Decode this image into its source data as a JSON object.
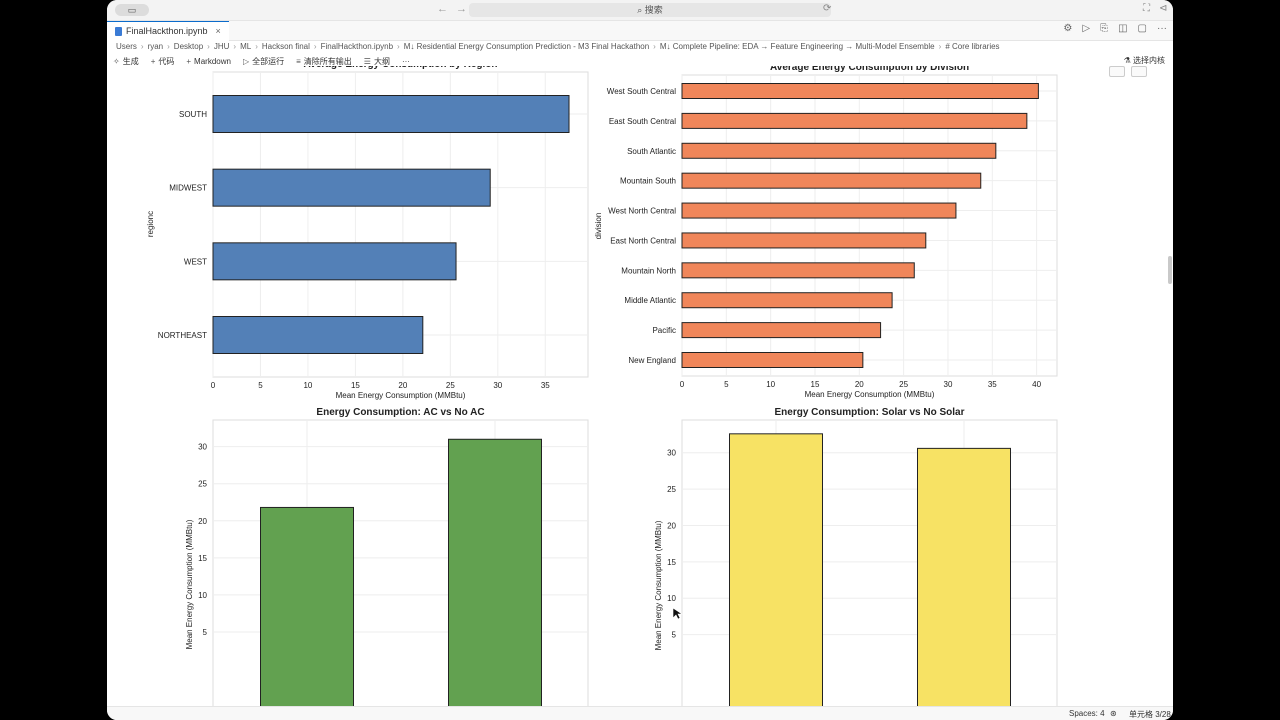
{
  "titlebar": {
    "search_placeholder": "搜索"
  },
  "tab": {
    "label": "FinalHackthon.ipynb",
    "close": "×"
  },
  "breadcrumb": [
    "Users",
    "ryan",
    "Desktop",
    "JHU",
    "ML",
    "Hackson final",
    "FinalHackthon.ipynb",
    "M↓ Residential Energy Consumption Prediction - M3 Final Hackathon",
    "M↓ Complete Pipeline: EDA → Feature Engineering → Multi-Model Ensemble",
    "# Core libraries"
  ],
  "toolbar": {
    "generate": "生成",
    "code": "代码",
    "markdown": "Markdown",
    "run_all": "全部运行",
    "clear_outputs": "清除所有输出",
    "outline": "大纲",
    "more": "···",
    "kernel": "选择内核"
  },
  "charts": {
    "region": {
      "title": "Average Energy Consumption by Region",
      "xlabel": "Mean Energy Consumption (MMBtu)",
      "ylabel": "regionc",
      "categories": [
        "SOUTH",
        "MIDWEST",
        "WEST",
        "NORTHEAST"
      ],
      "values": [
        37.5,
        29.2,
        25.6,
        22.1
      ],
      "xticks": [
        0,
        5,
        10,
        15,
        20,
        25,
        30,
        35
      ],
      "xlim": [
        0,
        39.5
      ],
      "color": "#5380b7"
    },
    "division": {
      "title": "Average Energy Consumption by Division",
      "xlabel": "Mean Energy Consumption (MMBtu)",
      "ylabel": "division",
      "categories": [
        "West South Central",
        "East South Central",
        "South Atlantic",
        "Mountain South",
        "West North Central",
        "East North Central",
        "Mountain North",
        "Middle Atlantic",
        "Pacific",
        "New England"
      ],
      "values": [
        40.2,
        38.9,
        35.4,
        33.7,
        30.9,
        27.5,
        26.2,
        23.7,
        22.4,
        20.4
      ],
      "xticks": [
        0,
        5,
        10,
        15,
        20,
        25,
        30,
        35,
        40
      ],
      "xlim": [
        0,
        42.3
      ],
      "color": "#f0865a"
    },
    "ac": {
      "title": "Energy Consumption: AC vs No AC",
      "ylabel": "Mean Energy Consumption (MMBtu)",
      "values": [
        21.8,
        31.0
      ],
      "yticks": [
        5,
        10,
        15,
        20,
        25,
        30
      ],
      "color": "#62a150"
    },
    "solar": {
      "title": "Energy Consumption: Solar vs No Solar",
      "ylabel": "Mean Energy Consumption (MMBtu)",
      "values": [
        32.6,
        30.6
      ],
      "yticks": [
        5,
        10,
        15,
        20,
        25,
        30
      ],
      "color": "#f7e264"
    }
  },
  "statusbar": {
    "spaces": "Spaces: 4",
    "cell": "单元格 3/28"
  }
}
